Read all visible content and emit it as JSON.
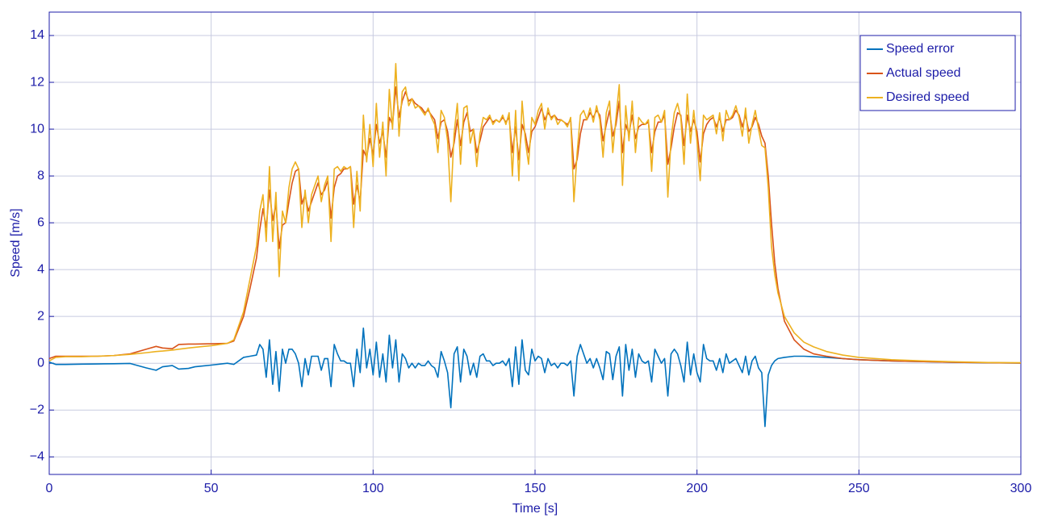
{
  "chart_data": {
    "type": "line",
    "xlabel": "Time [s]",
    "ylabel": "Speed [m/s]",
    "xlim": [
      0,
      300
    ],
    "xticks": [
      0,
      50,
      100,
      150,
      200,
      250,
      300
    ],
    "ylim": [
      -4.75,
      15
    ],
    "yticks": [
      {
        "value": -4,
        "label": "−4"
      },
      {
        "value": -2,
        "label": "−2"
      },
      0,
      2,
      4,
      6,
      8,
      10,
      12,
      14
    ],
    "grid": true,
    "legend": "upper right",
    "x": [
      0,
      2,
      5,
      10,
      15,
      20,
      25,
      30,
      33,
      35,
      38,
      40,
      43,
      45,
      50,
      55,
      57,
      60,
      62,
      64,
      65,
      66,
      67,
      68,
      69,
      70,
      71,
      72,
      73,
      74,
      75,
      76,
      77,
      78,
      79,
      80,
      81,
      82,
      83,
      84,
      85,
      86,
      87,
      88,
      89,
      90,
      91,
      92,
      93,
      94,
      95,
      96,
      97,
      98,
      99,
      100,
      101,
      102,
      103,
      104,
      105,
      106,
      107,
      108,
      109,
      110,
      111,
      112,
      113,
      114,
      115,
      116,
      117,
      118,
      119,
      120,
      121,
      122,
      123,
      124,
      125,
      126,
      127,
      128,
      129,
      130,
      131,
      132,
      133,
      134,
      135,
      136,
      137,
      138,
      139,
      140,
      141,
      142,
      143,
      144,
      145,
      146,
      147,
      148,
      149,
      150,
      151,
      152,
      153,
      154,
      155,
      156,
      157,
      158,
      159,
      160,
      161,
      162,
      163,
      164,
      165,
      166,
      167,
      168,
      169,
      170,
      171,
      172,
      173,
      174,
      175,
      176,
      177,
      178,
      179,
      180,
      181,
      182,
      183,
      184,
      185,
      186,
      187,
      188,
      189,
      190,
      191,
      192,
      193,
      194,
      195,
      196,
      197,
      198,
      199,
      200,
      201,
      202,
      203,
      204,
      205,
      206,
      207,
      208,
      209,
      210,
      211,
      212,
      213,
      214,
      215,
      216,
      217,
      218,
      219,
      220,
      221,
      222,
      223,
      224,
      225,
      227,
      230,
      233,
      236,
      240,
      245,
      250,
      260,
      270,
      280,
      290,
      300
    ],
    "series": [
      {
        "name": "Speed error",
        "color": "#0072bd",
        "values": [
          0.05,
          -0.05,
          -0.05,
          -0.04,
          -0.03,
          -0.02,
          -0.01,
          -0.2,
          -0.3,
          -0.15,
          -0.1,
          -0.25,
          -0.22,
          -0.15,
          -0.08,
          0,
          -0.05,
          0.25,
          0.3,
          0.35,
          0.8,
          0.6,
          -0.6,
          1.0,
          -0.9,
          0.5,
          -1.2,
          0.6,
          0,
          0.6,
          0.6,
          0.4,
          0,
          -1.0,
          0.2,
          -0.5,
          0.3,
          0.3,
          0.3,
          -0.3,
          0.2,
          0.2,
          -1.0,
          0.8,
          0.4,
          0.1,
          0.1,
          0,
          0,
          -1.0,
          0.6,
          -0.4,
          1.5,
          -0.2,
          0.6,
          -0.5,
          0.9,
          -0.6,
          0.4,
          -0.8,
          1.2,
          -0.2,
          1.0,
          -0.8,
          0.4,
          0.2,
          -0.2,
          0,
          -0.2,
          0,
          -0.1,
          -0.1,
          0.1,
          -0.1,
          -0.2,
          -0.6,
          0.5,
          0.1,
          -0.4,
          -1.9,
          0.4,
          0.7,
          -0.8,
          0.6,
          0.3,
          -0.5,
          0,
          -0.6,
          0.3,
          0.4,
          0.1,
          0.1,
          -0.1,
          0,
          0,
          0.1,
          -0.1,
          0.2,
          -1.0,
          0.7,
          -0.9,
          1.0,
          -0.3,
          -0.5,
          0.6,
          0.1,
          0.3,
          0.2,
          -0.4,
          0.2,
          -0.1,
          0,
          -0.2,
          0,
          0,
          -0.1,
          0.1,
          -1.4,
          0.3,
          0.8,
          0.4,
          0,
          0.2,
          -0.2,
          0.2,
          -0.2,
          -0.7,
          0.5,
          0.4,
          -0.7,
          0.3,
          0.7,
          -1.4,
          0.8,
          -0.3,
          0.6,
          -0.6,
          0.4,
          0.1,
          0,
          0.1,
          -0.8,
          0.6,
          0.3,
          0,
          0.2,
          -1.4,
          0.4,
          0.6,
          0.4,
          -0.1,
          -0.8,
          0.9,
          -0.5,
          0.4,
          -0.4,
          -0.8,
          0.8,
          0.2,
          0.1,
          0.1,
          -0.3,
          0.2,
          -0.4,
          0.4,
          0,
          0.1,
          0.2,
          -0.1,
          -0.4,
          0.3,
          -0.5,
          0.1,
          0.3,
          -0.2,
          -0.4,
          -2.7,
          -0.5,
          -0.1,
          0.1,
          0.2,
          0.25,
          0.3,
          0.3,
          0.28,
          0.25,
          0.2,
          0.15,
          0.1,
          0.07,
          0.04,
          0.02,
          0.01
        ]
      },
      {
        "name": "Actual speed",
        "color": "#d95319",
        "values": [
          0.2,
          0.3,
          0.3,
          0.3,
          0.3,
          0.33,
          0.4,
          0.6,
          0.72,
          0.65,
          0.62,
          0.8,
          0.82,
          0.82,
          0.83,
          0.85,
          0.95,
          2.0,
          3.2,
          4.5,
          5.7,
          6.6,
          5.8,
          7.4,
          6.1,
          6.8,
          4.9,
          5.9,
          6.0,
          6.9,
          7.7,
          8.2,
          8.3,
          6.8,
          7.2,
          6.5,
          6.9,
          7.3,
          7.7,
          7.2,
          7.4,
          7.8,
          6.2,
          7.5,
          8.0,
          8.1,
          8.3,
          8.3,
          8.4,
          6.8,
          7.6,
          6.9,
          9.1,
          8.8,
          9.6,
          8.9,
          10.2,
          9.4,
          9.9,
          8.8,
          10.5,
          10.2,
          11.8,
          10.5,
          11.2,
          11.6,
          11.2,
          11.3,
          11.1,
          11.0,
          10.9,
          10.7,
          10.8,
          10.6,
          10.4,
          9.6,
          10.3,
          10.4,
          9.9,
          8.8,
          9.4,
          10.4,
          9.3,
          10.3,
          10.7,
          9.9,
          10.0,
          9.0,
          9.5,
          10.1,
          10.3,
          10.5,
          10.3,
          10.4,
          10.3,
          10.5,
          10.3,
          10.5,
          9.0,
          10.1,
          8.7,
          10.2,
          9.8,
          9.0,
          9.9,
          10.1,
          10.5,
          10.9,
          10.4,
          10.7,
          10.5,
          10.6,
          10.4,
          10.4,
          10.3,
          10.2,
          10.4,
          8.3,
          8.7,
          9.8,
          10.4,
          10.4,
          10.7,
          10.5,
          10.8,
          10.6,
          9.5,
          10.2,
          10.8,
          9.7,
          10.2,
          11.2,
          9.0,
          10.2,
          9.8,
          10.6,
          9.6,
          10.1,
          10.2,
          10.2,
          10.3,
          9.0,
          9.9,
          10.3,
          10.3,
          10.6,
          8.5,
          9.2,
          10.1,
          10.7,
          10.6,
          9.3,
          10.6,
          9.9,
          10.4,
          9.9,
          8.6,
          9.8,
          10.2,
          10.4,
          10.5,
          10.1,
          10.5,
          9.9,
          10.4,
          10.4,
          10.5,
          10.8,
          10.6,
          10.1,
          10.6,
          9.9,
          10.1,
          10.5,
          10.2,
          9.7,
          9.4,
          8.0,
          6.0,
          4.3,
          3.2,
          1.8,
          1.0,
          0.6,
          0.4,
          0.3,
          0.2,
          0.15,
          0.1,
          0.07,
          0.04,
          0.02,
          0.01
        ]
      },
      {
        "name": "Desired speed",
        "color": "#edb120",
        "values": [
          0.1,
          0.25,
          0.28,
          0.28,
          0.3,
          0.33,
          0.38,
          0.45,
          0.5,
          0.52,
          0.56,
          0.6,
          0.65,
          0.68,
          0.75,
          0.85,
          1.0,
          2.2,
          3.6,
          5.0,
          6.5,
          7.2,
          5.2,
          8.4,
          5.2,
          7.3,
          3.7,
          6.5,
          6.0,
          7.5,
          8.3,
          8.6,
          8.3,
          5.8,
          7.4,
          6.0,
          7.2,
          7.6,
          8.0,
          6.9,
          7.6,
          8.0,
          5.2,
          8.3,
          8.4,
          8.2,
          8.4,
          8.3,
          8.4,
          5.8,
          8.2,
          6.5,
          10.6,
          8.6,
          10.2,
          8.4,
          11.1,
          8.8,
          10.3,
          8.0,
          11.7,
          10.0,
          12.8,
          9.7,
          11.6,
          11.8,
          11.0,
          11.3,
          10.9,
          11.0,
          10.8,
          10.6,
          10.9,
          10.5,
          10.2,
          9.0,
          10.8,
          10.5,
          9.5,
          6.9,
          9.8,
          11.1,
          8.5,
          10.9,
          11.0,
          9.4,
          10.0,
          8.4,
          9.8,
          10.5,
          10.4,
          10.6,
          10.2,
          10.4,
          10.3,
          10.6,
          10.2,
          10.7,
          8.0,
          10.8,
          7.8,
          11.2,
          9.5,
          8.5,
          10.5,
          10.2,
          10.8,
          11.1,
          10.0,
          10.9,
          10.4,
          10.6,
          10.2,
          10.4,
          10.3,
          10.1,
          10.5,
          6.9,
          9.0,
          10.6,
          10.8,
          10.4,
          10.9,
          10.3,
          11.0,
          10.4,
          8.8,
          10.7,
          11.2,
          9.0,
          10.5,
          11.9,
          7.6,
          11.0,
          9.5,
          11.2,
          9.0,
          10.5,
          10.3,
          10.2,
          10.4,
          8.2,
          10.5,
          10.6,
          10.3,
          10.8,
          7.1,
          9.6,
          10.7,
          11.1,
          10.5,
          8.5,
          11.5,
          9.4,
          10.8,
          9.5,
          7.8,
          10.6,
          10.4,
          10.5,
          10.6,
          9.8,
          10.7,
          9.5,
          10.8,
          10.4,
          10.6,
          11.0,
          10.5,
          9.7,
          10.9,
          9.4,
          10.2,
          10.8,
          10.0,
          9.3,
          9.2,
          7.5,
          5.0,
          3.8,
          3.0,
          2.0,
          1.3,
          0.9,
          0.7,
          0.5,
          0.35,
          0.25,
          0.15,
          0.1,
          0.06,
          0.03,
          0.02
        ]
      }
    ]
  }
}
